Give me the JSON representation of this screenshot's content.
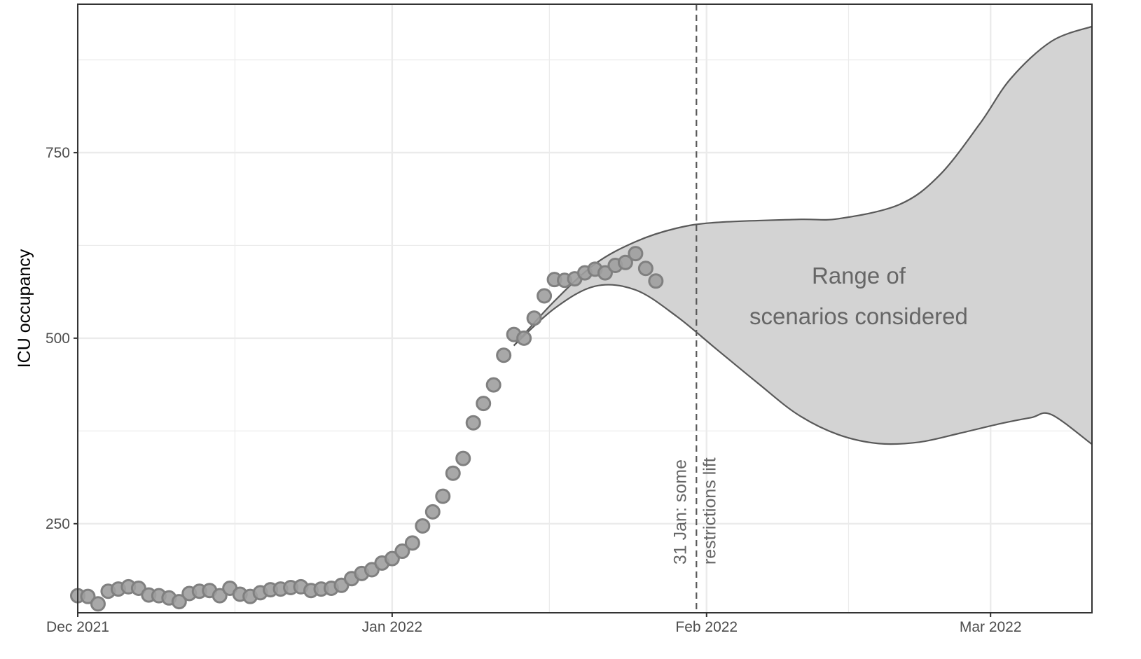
{
  "chart_data": {
    "type": "scatter",
    "ylabel": "ICU occupancy",
    "xlabel": "",
    "title": "",
    "x_ticks": [
      "2021-12-01",
      "2022-01-01",
      "2022-02-01",
      "2022-03-01"
    ],
    "x_tick_labels": [
      "Dec 2021",
      "Jan 2022",
      "Feb 2022",
      "Mar 2022"
    ],
    "xlim": [
      "2021-12-01",
      "2022-03-11"
    ],
    "y_ticks": [
      250,
      500,
      750
    ],
    "ylim": [
      130,
      950
    ],
    "grid": true,
    "observed": {
      "start_date": "2021-12-01",
      "values": [
        153,
        152,
        142,
        159,
        162,
        165,
        163,
        154,
        153,
        150,
        145,
        156,
        159,
        160,
        153,
        163,
        155,
        152,
        157,
        161,
        162,
        164,
        165,
        160,
        162,
        163,
        167,
        176,
        183,
        188,
        197,
        203,
        213,
        224,
        247,
        266,
        287,
        318,
        338,
        386,
        412,
        437,
        477,
        505,
        500,
        527,
        557,
        579,
        578,
        580,
        588,
        593,
        588,
        598,
        602,
        614,
        594,
        577
      ]
    },
    "scenario_band": {
      "label": "Range of\nscenarios considered",
      "start_date": "2022-01-13",
      "upper": [
        {
          "x": "2022-01-13",
          "y": 490
        },
        {
          "x": "2022-01-17",
          "y": 550
        },
        {
          "x": "2022-01-21",
          "y": 600
        },
        {
          "x": "2022-01-25",
          "y": 630
        },
        {
          "x": "2022-01-29",
          "y": 648
        },
        {
          "x": "2022-02-02",
          "y": 656
        },
        {
          "x": "2022-02-10",
          "y": 660
        },
        {
          "x": "2022-02-14",
          "y": 661
        },
        {
          "x": "2022-02-20",
          "y": 680
        },
        {
          "x": "2022-02-24",
          "y": 720
        },
        {
          "x": "2022-02-28",
          "y": 790
        },
        {
          "x": "2022-03-03",
          "y": 850
        },
        {
          "x": "2022-03-07",
          "y": 900
        },
        {
          "x": "2022-03-11",
          "y": 920
        }
      ],
      "lower": [
        {
          "x": "2022-01-13",
          "y": 490
        },
        {
          "x": "2022-01-17",
          "y": 540
        },
        {
          "x": "2022-01-21",
          "y": 570
        },
        {
          "x": "2022-01-25",
          "y": 565
        },
        {
          "x": "2022-01-29",
          "y": 530
        },
        {
          "x": "2022-02-02",
          "y": 485
        },
        {
          "x": "2022-02-06",
          "y": 440
        },
        {
          "x": "2022-02-10",
          "y": 397
        },
        {
          "x": "2022-02-14",
          "y": 370
        },
        {
          "x": "2022-02-18",
          "y": 358
        },
        {
          "x": "2022-02-22",
          "y": 360
        },
        {
          "x": "2022-02-26",
          "y": 372
        },
        {
          "x": "2022-03-02",
          "y": 385
        },
        {
          "x": "2022-03-05",
          "y": 393
        },
        {
          "x": "2022-03-07",
          "y": 397
        },
        {
          "x": "2022-03-11",
          "y": 357
        }
      ]
    },
    "event": {
      "date": "2022-01-31",
      "label_line1": "31 Jan: some",
      "label_line2": "restrictions lift"
    },
    "colors": {
      "point_fill": "#9e9e9e",
      "point_stroke": "#808080",
      "band_fill": "#d3d3d3",
      "band_line": "#595959",
      "grid": "#ebebeb",
      "vline": "#595959"
    }
  }
}
